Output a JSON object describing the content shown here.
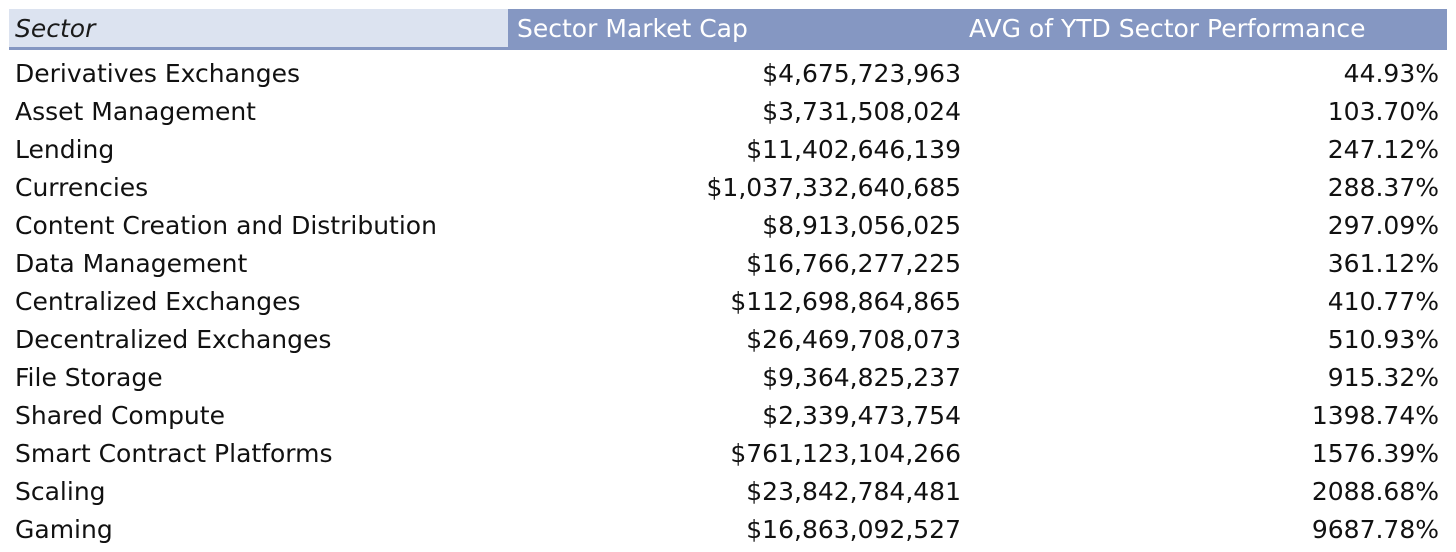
{
  "chart_data": {
    "type": "table",
    "columns": [
      "Sector",
      "Sector Market Cap",
      "AVG of YTD Sector Performance"
    ],
    "rows": [
      [
        "Derivatives Exchanges",
        "$4,675,723,963",
        "44.93%"
      ],
      [
        "Asset Management",
        "$3,731,508,024",
        "103.70%"
      ],
      [
        "Lending",
        "$11,402,646,139",
        "247.12%"
      ],
      [
        "Currencies",
        "$1,037,332,640,685",
        "288.37%"
      ],
      [
        "Content Creation and Distribution",
        "$8,913,056,025",
        "297.09%"
      ],
      [
        "Data Management",
        "$16,766,277,225",
        "361.12%"
      ],
      [
        "Centralized Exchanges",
        "$112,698,864,865",
        "410.77%"
      ],
      [
        "Decentralized Exchanges",
        "$26,469,708,073",
        "510.93%"
      ],
      [
        "File Storage",
        "$9,364,825,237",
        "915.32%"
      ],
      [
        "Shared Compute",
        "$2,339,473,754",
        "1398.74%"
      ],
      [
        "Smart Contract Platforms",
        "$761,123,104,266",
        "1576.39%"
      ],
      [
        "Scaling",
        "$23,842,784,481",
        "2088.68%"
      ],
      [
        "Gaming",
        "$16,863,092,527",
        "9687.78%"
      ]
    ],
    "market_cap_usd": [
      4675723963,
      3731508024,
      11402646139,
      1037332640685,
      8913056025,
      16766277225,
      112698864865,
      26469708073,
      9364825237,
      2339473754,
      761123104266,
      23842784481,
      16863092527
    ],
    "ytd_performance_pct": [
      44.93,
      103.7,
      247.12,
      288.37,
      297.09,
      361.12,
      410.77,
      510.93,
      915.32,
      1398.74,
      1576.39,
      2088.68,
      9687.78
    ]
  },
  "colors": {
    "header_fill": "#8597c2",
    "sector_header_fill": "#dce3f0",
    "header_text": "#ffffff",
    "body_text": "#111111"
  }
}
